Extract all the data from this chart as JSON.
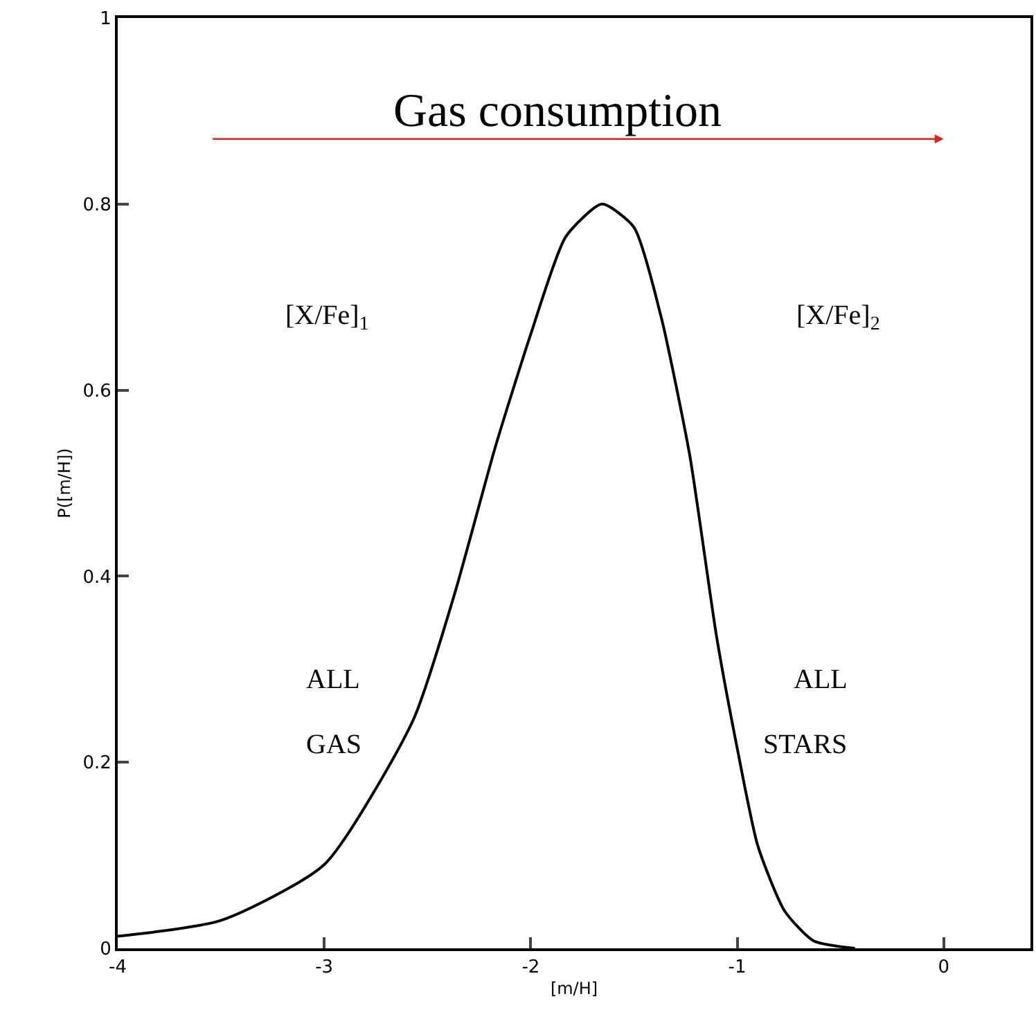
{
  "chart_data": {
    "type": "line",
    "xlabel": "[m/H]",
    "ylabel": "P([m/H])",
    "x": [
      -4,
      -3.5,
      -3,
      -2.57,
      -2.37,
      -2.17,
      -2,
      -1.83,
      -1.655,
      -1.5,
      -1.37,
      -1.23,
      -1.1,
      -1,
      -0.9,
      -0.77,
      -0.63,
      -0.43
    ],
    "series": [
      {
        "color": "#000000",
        "values": [
          0.013,
          0.03,
          0.09,
          0.245,
          0.38,
          0.54,
          0.66,
          0.765,
          0.8,
          0.775,
          0.68,
          0.53,
          0.335,
          0.215,
          0.11,
          0.04,
          0.008,
          0
        ]
      }
    ],
    "xlim": [
      -4,
      0.42
    ],
    "xticks": [
      -4,
      -3,
      -2,
      -1,
      0
    ],
    "ylim": [
      0,
      1
    ],
    "yticks": [
      0,
      0.2,
      0.4,
      0.6,
      0.8,
      1
    ],
    "marker": "none",
    "line_style": "solid",
    "annotations": [
      "Gas consumption",
      "[X/Fe]$_{1}$",
      "[X/Fe]$_{2}$",
      "ALL",
      "GAS",
      "ALL",
      "STARS"
    ]
  }
}
